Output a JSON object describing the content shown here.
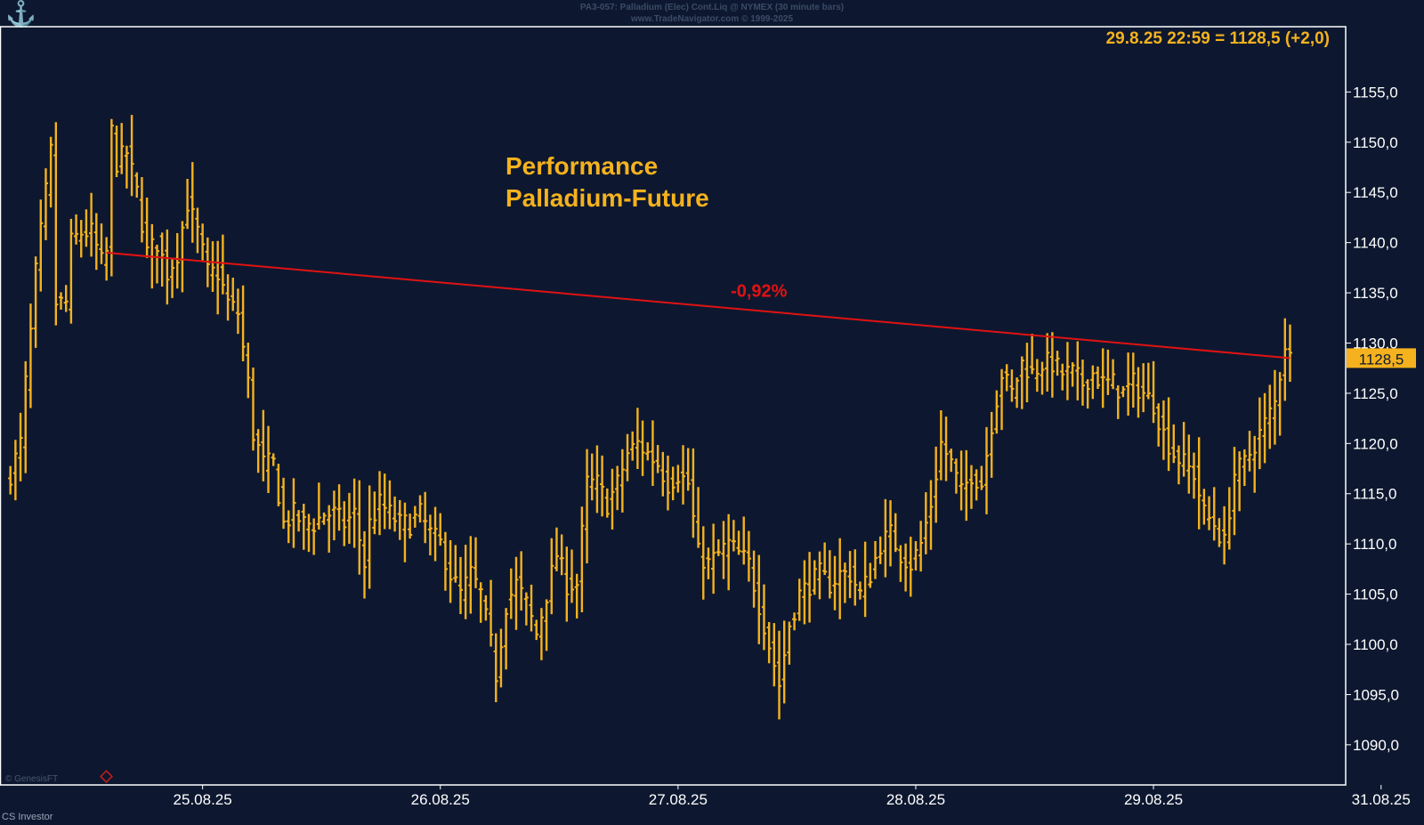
{
  "header": {
    "line1": "PA3-057: Palladium (Elec) Cont.Liq @ NYMEX (30 minute bars)",
    "line2": "www.TradeNavigator.com © 1999-2025"
  },
  "footer": {
    "brand": "CS Investor",
    "small_brand": "© GenesisFT"
  },
  "colors": {
    "background": "#0d1830",
    "bars": "#f5b21e",
    "trend": "#e01212",
    "text_accent": "#f5b21e",
    "axis": "#ffffff"
  },
  "chart_data": {
    "type": "ohlc-bar",
    "title": "Performance\nPalladium-Future",
    "last_quote": "29.8.25 22:59 = 1128,5 (+2,0)",
    "last_price_label": "1128,5",
    "trend_annotation": "-0,92%",
    "trend_line": {
      "from": {
        "bar": 19,
        "price": 1139.0
      },
      "to": {
        "bar": 253,
        "price": 1128.5
      }
    },
    "y_ticks": [
      "1155,0",
      "1150,0",
      "1145,0",
      "1140,0",
      "1135,0",
      "1130,0",
      "1125,0",
      "1120,0",
      "1115,0",
      "1110,0",
      "1105,0",
      "1100,0",
      "1095,0",
      "1090,0"
    ],
    "y_tick_values": [
      1155,
      1150,
      1145,
      1140,
      1135,
      1130,
      1125,
      1120,
      1115,
      1110,
      1105,
      1100,
      1095,
      1090
    ],
    "ylim": [
      1086,
      1161.5
    ],
    "x_labels": [
      {
        "label": "25.08.25",
        "bar": 38
      },
      {
        "label": "26.08.25",
        "bar": 85
      },
      {
        "label": "27.08.25",
        "bar": 132
      },
      {
        "label": "28.08.25",
        "bar": 179
      },
      {
        "label": "29.08.25",
        "bar": 226
      },
      {
        "label": "31.08.25",
        "bar": 271
      }
    ],
    "xlim": [
      -1,
      264
    ],
    "anchors": [
      [
        0,
        1117
      ],
      [
        2,
        1120
      ],
      [
        3,
        1126
      ],
      [
        4,
        1131
      ],
      [
        5,
        1137
      ],
      [
        7,
        1145
      ],
      [
        8,
        1149
      ],
      [
        9,
        1134
      ],
      [
        11,
        1134
      ],
      [
        12,
        1140
      ],
      [
        14,
        1141
      ],
      [
        16,
        1141
      ],
      [
        18,
        1138
      ],
      [
        19,
        1139
      ],
      [
        20,
        1151
      ],
      [
        21,
        1148
      ],
      [
        23,
        1149
      ],
      [
        25,
        1145
      ],
      [
        27,
        1139
      ],
      [
        29,
        1140
      ],
      [
        31,
        1137
      ],
      [
        33,
        1139
      ],
      [
        35,
        1144
      ],
      [
        37,
        1141
      ],
      [
        39,
        1137
      ],
      [
        41,
        1137
      ],
      [
        43,
        1134
      ],
      [
        45,
        1133
      ],
      [
        47,
        1126
      ],
      [
        48,
        1121
      ],
      [
        50,
        1118
      ],
      [
        52,
        1118
      ],
      [
        54,
        1112
      ],
      [
        56,
        1113
      ],
      [
        58,
        1112
      ],
      [
        60,
        1112
      ],
      [
        62,
        1113
      ],
      [
        64,
        1113
      ],
      [
        66,
        1112
      ],
      [
        68,
        1113
      ],
      [
        70,
        1108
      ],
      [
        71,
        1112
      ],
      [
        73,
        1114
      ],
      [
        75,
        1113
      ],
      [
        77,
        1112
      ],
      [
        79,
        1112
      ],
      [
        81,
        1113
      ],
      [
        83,
        1111
      ],
      [
        85,
        1110
      ],
      [
        87,
        1107
      ],
      [
        89,
        1105
      ],
      [
        91,
        1107
      ],
      [
        93,
        1105
      ],
      [
        95,
        1100
      ],
      [
        96,
        1097
      ],
      [
        98,
        1104
      ],
      [
        100,
        1106
      ],
      [
        102,
        1104
      ],
      [
        104,
        1101
      ],
      [
        106,
        1105
      ],
      [
        108,
        1109
      ],
      [
        110,
        1106
      ],
      [
        112,
        1106
      ],
      [
        114,
        1116
      ],
      [
        116,
        1116
      ],
      [
        118,
        1114
      ],
      [
        120,
        1116
      ],
      [
        122,
        1119
      ],
      [
        124,
        1120
      ],
      [
        126,
        1119
      ],
      [
        128,
        1118
      ],
      [
        130,
        1116
      ],
      [
        132,
        1117
      ],
      [
        134,
        1116
      ],
      [
        136,
        1109
      ],
      [
        138,
        1108
      ],
      [
        140,
        1109
      ],
      [
        142,
        1110
      ],
      [
        144,
        1109
      ],
      [
        146,
        1108
      ],
      [
        148,
        1104
      ],
      [
        150,
        1100
      ],
      [
        152,
        1096
      ],
      [
        154,
        1102
      ],
      [
        156,
        1105
      ],
      [
        158,
        1106
      ],
      [
        160,
        1107
      ],
      [
        162,
        1106
      ],
      [
        164,
        1107
      ],
      [
        166,
        1107
      ],
      [
        168,
        1105
      ],
      [
        170,
        1107
      ],
      [
        172,
        1110
      ],
      [
        174,
        1111
      ],
      [
        176,
        1109
      ],
      [
        178,
        1108
      ],
      [
        180,
        1110
      ],
      [
        182,
        1114
      ],
      [
        184,
        1120
      ],
      [
        186,
        1118
      ],
      [
        188,
        1115
      ],
      [
        190,
        1117
      ],
      [
        192,
        1116
      ],
      [
        194,
        1122
      ],
      [
        196,
        1127
      ],
      [
        198,
        1125
      ],
      [
        200,
        1128
      ],
      [
        202,
        1127
      ],
      [
        204,
        1128
      ],
      [
        206,
        1128
      ],
      [
        208,
        1127
      ],
      [
        210,
        1127
      ],
      [
        212,
        1126
      ],
      [
        214,
        1127
      ],
      [
        216,
        1126
      ],
      [
        218,
        1126
      ],
      [
        220,
        1125
      ],
      [
        222,
        1126
      ],
      [
        224,
        1125
      ],
      [
        226,
        1124
      ],
      [
        228,
        1121
      ],
      [
        230,
        1119
      ],
      [
        232,
        1118
      ],
      [
        234,
        1117
      ],
      [
        236,
        1113
      ],
      [
        238,
        1112
      ],
      [
        240,
        1110
      ],
      [
        242,
        1117
      ],
      [
        244,
        1118
      ],
      [
        246,
        1120
      ],
      [
        248,
        1122
      ],
      [
        250,
        1124
      ],
      [
        252,
        1130
      ],
      [
        253,
        1128.5
      ]
    ]
  }
}
